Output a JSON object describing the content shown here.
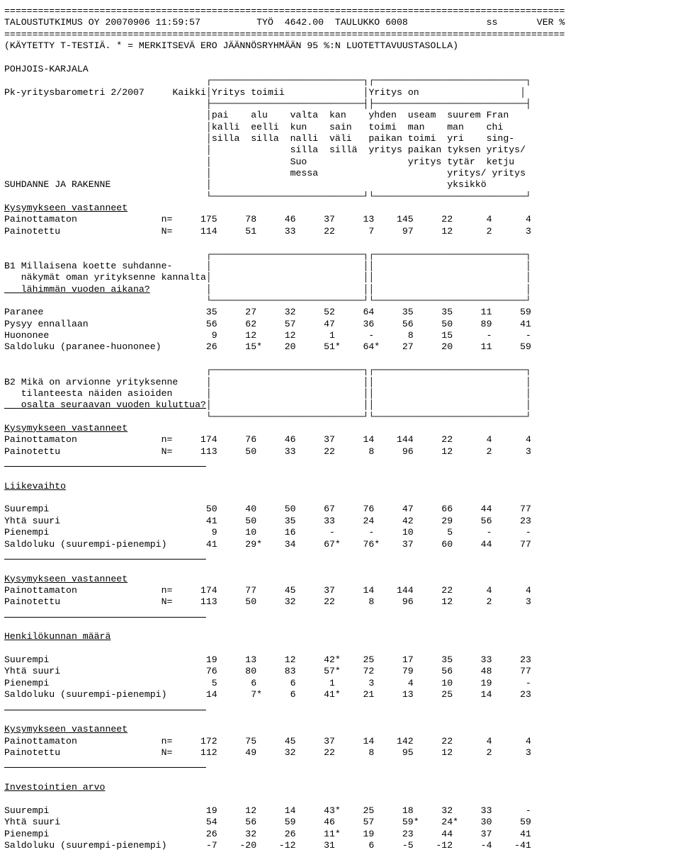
{
  "hr": "====================================================================================================",
  "header": {
    "line1": "TALOUSTUTKIMUS OY 20070906 11:59:57          TYÖ  4642.00  TAULUKKO 6008              ss       VER %",
    "line2": "(KÄYTETTY T-TESTIÄ. * = MERKITSEVÄ ERO JÄÄNNÖSRYHMÄÄN 95 %:N LUOTETTAVUUSTASOLLA)"
  },
  "region": "POHJOIS-KARJALA",
  "subtitle": "Pk-yritysbarometri 2/2007",
  "colset": {
    "h0": "Kaikki",
    "h1": "Yritys toimii",
    "h2": "Yritys on",
    "r1": "pai    alu    valta  kan    yhden  useam  suurem Fran",
    "r2": "kalli  eelli  kun    sain   toimi  man    man    chi",
    "r3": "silla  silla  nalli  väli   paikan toimi  yri    sing-",
    "r4": "              silla  sillä  yritys paikan tyksen yritys/",
    "r5": "              Suo                  yritys tytär  ketju",
    "r6": "              messa                       yritys/ yritys",
    "r7": "                                          yksikkö"
  },
  "sectionA": "SUHDANNE JA RAKENNE",
  "kv": "Kysymykseen vastanneet",
  "kv1": {
    "painottamaton": "Painottamaton               n=     175     78     46     37     13    145     22      4      4",
    "painotettu": "Painotettu                  N=     114     51     33     22      7     97     12      2      3"
  },
  "b1": {
    "l1": "B1 Millaisena koette suhdanne-",
    "l2": "   näkymät oman yrityksenne kannalta",
    "l3": "   lähimmän vuoden aikana?"
  },
  "b1rows": {
    "r1": "Paranee                             35     27     32     52     64     35     35     11     59",
    "r2": "Pysyy ennallaan                     56     62     57     47     36     56     50     89     41",
    "r3": "Huononee                             9     12     12      1      -      8     15      -      -",
    "r4": "Saldoluku (paranee-huononee)        26     15*    20     51*    64*    27     20     11     59"
  },
  "b2": {
    "l1": "B2 Mikä on arvionne yrityksenne",
    "l2": "   tilanteesta näiden asioiden",
    "l3": "   osalta seuraavan vuoden kuluttua?"
  },
  "kv2": {
    "painottamaton": "Painottamaton               n=     174     76     46     37     14    144     22      4      4",
    "painotettu": "Painotettu                  N=     113     50     33     22      8     96     12      2      3"
  },
  "liikevaihto": "Liikevaihto",
  "liikerows": {
    "r1": "Suurempi                            50     40     50     67     76     47     66     44     77",
    "r2": "Yhtä suuri                          41     50     35     33     24     42     29     56     23",
    "r3": "Pienempi                             9     10     16      -      -     10      5      -      -",
    "r4": "Saldoluku (suurempi-pienempi)       41     29*    34     67*    76*    37     60     44     77"
  },
  "kv3": {
    "painottamaton": "Painottamaton               n=     174     77     45     37     14    144     22      4      4",
    "painotettu": "Painotettu                  N=     113     50     32     22      8     96     12      2      3"
  },
  "henkilokunnan": "Henkilökunnan määrä",
  "henkrows": {
    "r1": "Suurempi                            19     13     12     42*    25     17     35     33     23",
    "r2": "Yhtä suuri                          76     80     83     57*    72     79     56     48     77",
    "r3": "Pienempi                             5      6      6      1      3      4     10     19      -",
    "r4": "Saldoluku (suurempi-pienempi)       14      7*     6     41*    21     13     25     14     23"
  },
  "kv4": {
    "painottamaton": "Painottamaton               n=     172     75     45     37     14    142     22      4      4",
    "painotettu": "Painotettu                  N=     112     49     32     22      8     95     12      2      3"
  },
  "investointien": "Investointien arvo",
  "invrows": {
    "r1": "Suurempi                            19     12     14     43*    25     18     32     33      -",
    "r2": "Yhtä suuri                          54     56     59     46     57     59*    24*    30     59",
    "r3": "Pienempi                            26     32     26     11*    19     23     44     37     41",
    "r4": "Saldoluku (suurempi-pienempi)       -7    -20    -12     31      6     -5    -12     -4    -41"
  }
}
